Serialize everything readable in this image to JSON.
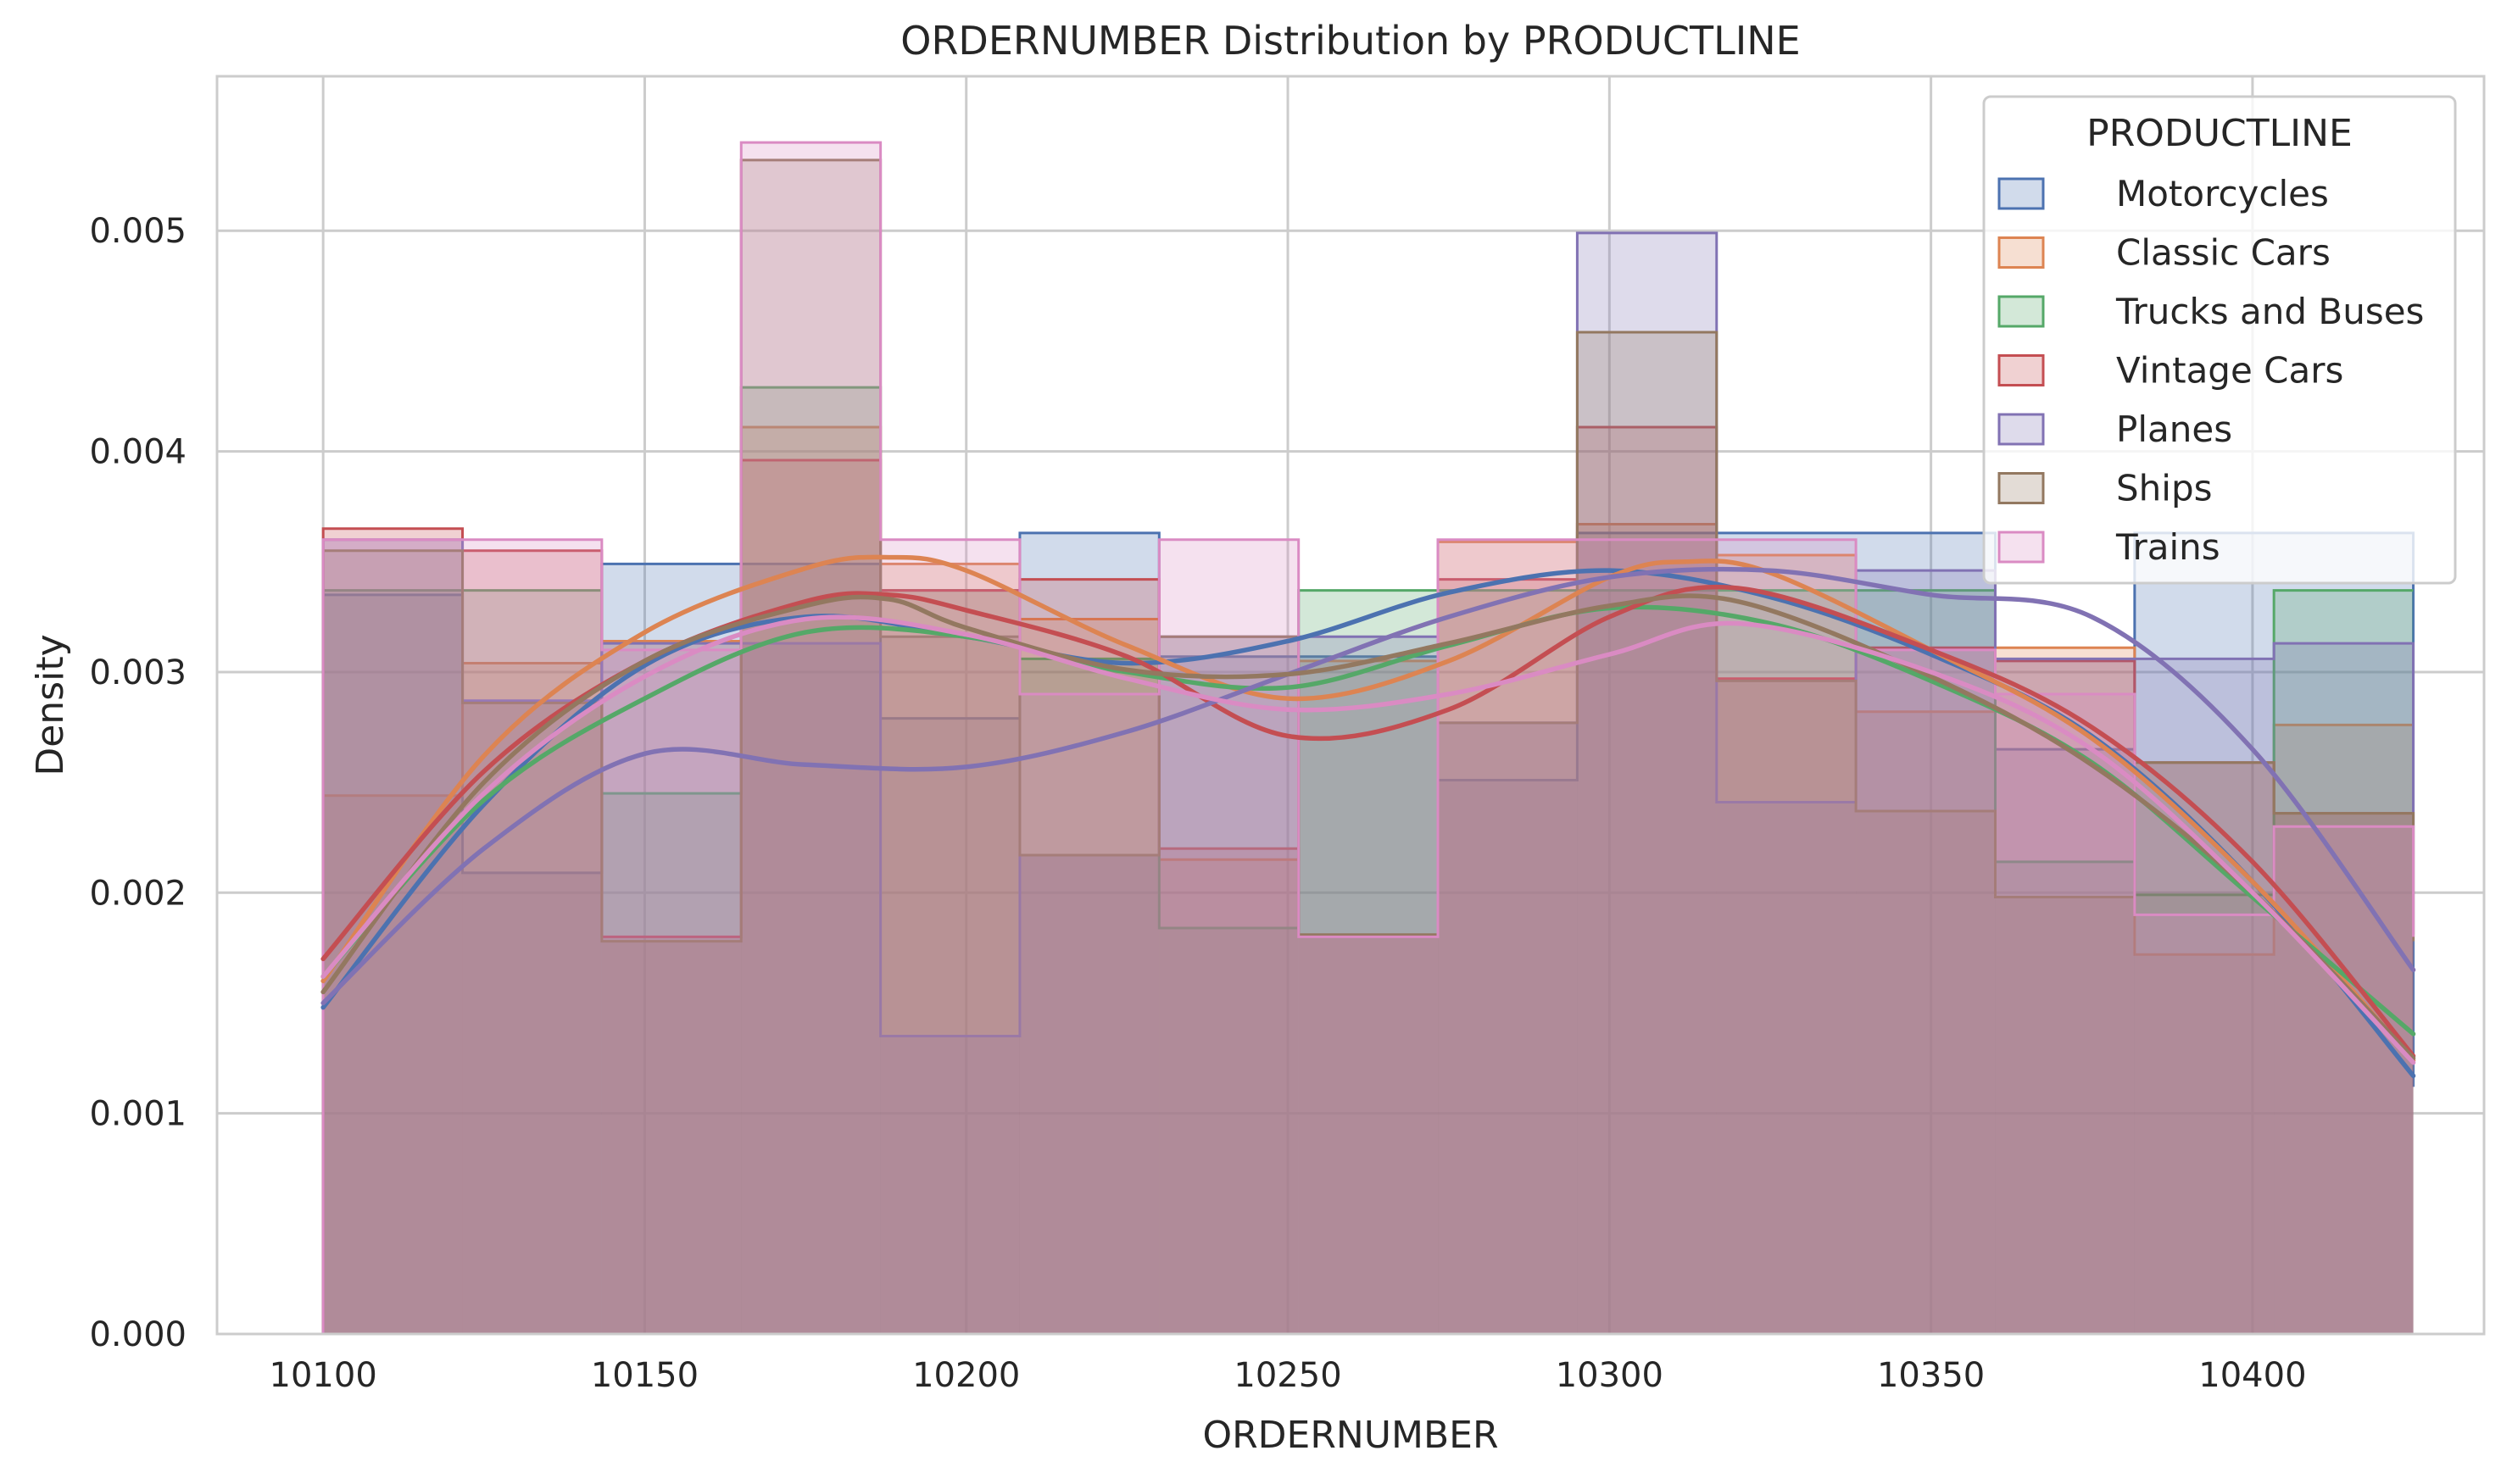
{
  "chart_data": {
    "type": "histogram",
    "title": "ORDERNUMBER Distribution by PRODUCTLINE",
    "xlabel": "ORDERNUMBER",
    "ylabel": "Density",
    "xlim": [
      10083.5,
      10436
    ],
    "ylim": [
      0,
      0.0057
    ],
    "x_ticks": [
      10100,
      10150,
      10200,
      10250,
      10300,
      10350,
      10400
    ],
    "x_tick_labels": [
      "10100",
      "10150",
      "10200",
      "10250",
      "10300",
      "10350",
      "10400"
    ],
    "y_ticks": [
      0,
      0.001,
      0.002,
      0.003,
      0.004,
      0.005
    ],
    "y_tick_labels": [
      "0.000",
      "0.001",
      "0.002",
      "0.003",
      "0.004",
      "0.005"
    ],
    "grid": true,
    "bins": [
      10100,
      10121.67,
      10143.33,
      10165,
      10186.67,
      10208.33,
      10230,
      10251.67,
      10273.33,
      10295,
      10316.67,
      10338.33,
      10360,
      10381.67,
      10403.33,
      10425
    ],
    "legend": {
      "title": "PRODUCTLINE",
      "position": "top-right"
    },
    "series": [
      {
        "name": "Motorcycles",
        "color": "#4c72b0",
        "values": [
          0.00335,
          0.00209,
          0.00349,
          0.00349,
          0.00279,
          0.00363,
          0.00307,
          0.00307,
          0.00251,
          0.00363,
          0.00363,
          0.00363,
          0.00265,
          0.00363,
          0.00363,
          0.00112
        ],
        "kde": [
          [
            10100,
            0.00148
          ],
          [
            10125,
            0.0024
          ],
          [
            10150,
            0.00303
          ],
          [
            10175,
            0.00325
          ],
          [
            10200,
            0.00316
          ],
          [
            10225,
            0.00304
          ],
          [
            10250,
            0.00314
          ],
          [
            10275,
            0.00336
          ],
          [
            10300,
            0.00346
          ],
          [
            10325,
            0.00334
          ],
          [
            10350,
            0.00308
          ],
          [
            10375,
            0.00271
          ],
          [
            10400,
            0.00205
          ],
          [
            10425,
            0.00117
          ]
        ]
      },
      {
        "name": "Classic Cars",
        "color": "#dd8452",
        "values": [
          0.00244,
          0.00304,
          0.00314,
          0.00411,
          0.00349,
          0.00324,
          0.00215,
          0.00305,
          0.00359,
          0.00367,
          0.00353,
          0.00282,
          0.00311,
          0.00172,
          0.00276,
          0.00276
        ],
        "kde": [
          [
            10100,
            0.0016
          ],
          [
            10125,
            0.00262
          ],
          [
            10150,
            0.00318
          ],
          [
            10175,
            0.00347
          ],
          [
            10188,
            0.00352
          ],
          [
            10200,
            0.00346
          ],
          [
            10225,
            0.00312
          ],
          [
            10250,
            0.00288
          ],
          [
            10275,
            0.00305
          ],
          [
            10300,
            0.00343
          ],
          [
            10312,
            0.0035
          ],
          [
            10325,
            0.00345
          ],
          [
            10350,
            0.0031
          ],
          [
            10375,
            0.0027
          ],
          [
            10400,
            0.00205
          ],
          [
            10425,
            0.00124
          ]
        ]
      },
      {
        "name": "Trucks and Buses",
        "color": "#55a868",
        "values": [
          0.00337,
          0.00337,
          0.00245,
          0.00429,
          0.00337,
          0.00306,
          0.00184,
          0.00337,
          0.00337,
          0.00337,
          0.00337,
          0.00337,
          0.00214,
          0.00199,
          0.00337,
          0.00337
        ],
        "kde": [
          [
            10100,
            0.00162
          ],
          [
            10125,
            0.00242
          ],
          [
            10150,
            0.00288
          ],
          [
            10175,
            0.00318
          ],
          [
            10200,
            0.00316
          ],
          [
            10225,
            0.003
          ],
          [
            10250,
            0.00293
          ],
          [
            10275,
            0.00312
          ],
          [
            10300,
            0.00329
          ],
          [
            10325,
            0.00322
          ],
          [
            10350,
            0.00296
          ],
          [
            10375,
            0.00259
          ],
          [
            10400,
            0.00198
          ],
          [
            10425,
            0.00136
          ]
        ]
      },
      {
        "name": "Vintage Cars",
        "color": "#c44e52",
        "values": [
          0.00365,
          0.00355,
          0.0018,
          0.00396,
          0.00337,
          0.00342,
          0.0022,
          0.0018,
          0.00342,
          0.00411,
          0.00297,
          0.00311,
          0.00305,
          0.00259,
          0.00236,
          0.0018
        ],
        "kde": [
          [
            10100,
            0.0017
          ],
          [
            10125,
            0.00255
          ],
          [
            10150,
            0.00305
          ],
          [
            10175,
            0.00332
          ],
          [
            10188,
            0.00335
          ],
          [
            10200,
            0.00328
          ],
          [
            10225,
            0.00307
          ],
          [
            10250,
            0.00271
          ],
          [
            10275,
            0.00283
          ],
          [
            10300,
            0.00325
          ],
          [
            10320,
            0.00338
          ],
          [
            10350,
            0.0031
          ],
          [
            10375,
            0.00275
          ],
          [
            10400,
            0.00214
          ],
          [
            10425,
            0.00126
          ]
        ]
      },
      {
        "name": "Planes",
        "color": "#8172b3",
        "values": [
          0.0036,
          0.00287,
          0.00313,
          0.00313,
          0.00135,
          0.00217,
          0.00316,
          0.00316,
          0.00277,
          0.00499,
          0.00241,
          0.00346,
          0.00306,
          0.00306,
          0.00313,
          0.00181
        ],
        "kde": [
          [
            10100,
            0.0015
          ],
          [
            10125,
            0.0022
          ],
          [
            10150,
            0.00263
          ],
          [
            10175,
            0.00258
          ],
          [
            10200,
            0.00257
          ],
          [
            10225,
            0.00273
          ],
          [
            10250,
            0.00299
          ],
          [
            10275,
            0.00325
          ],
          [
            10300,
            0.00343
          ],
          [
            10325,
            0.00346
          ],
          [
            10350,
            0.00335
          ],
          [
            10375,
            0.00325
          ],
          [
            10400,
            0.00265
          ],
          [
            10425,
            0.00165
          ]
        ]
      },
      {
        "name": "Ships",
        "color": "#937860",
        "values": [
          0.00355,
          0.00286,
          0.00178,
          0.00532,
          0.00316,
          0.00217,
          0.00316,
          0.00181,
          0.00277,
          0.00454,
          0.00296,
          0.00237,
          0.00198,
          0.00259,
          0.00236,
          0.00178
        ],
        "kde": [
          [
            10100,
            0.00155
          ],
          [
            10125,
            0.0025
          ],
          [
            10150,
            0.00305
          ],
          [
            10175,
            0.0033
          ],
          [
            10188,
            0.00333
          ],
          [
            10200,
            0.0032
          ],
          [
            10225,
            0.00301
          ],
          [
            10250,
            0.00299
          ],
          [
            10275,
            0.00313
          ],
          [
            10300,
            0.0033
          ],
          [
            10320,
            0.00332
          ],
          [
            10350,
            0.00298
          ],
          [
            10375,
            0.00258
          ],
          [
            10400,
            0.002
          ],
          [
            10425,
            0.00125
          ]
        ]
      },
      {
        "name": "Trains",
        "color": "#da8bc3",
        "values": [
          0.0036,
          0.0036,
          0.0031,
          0.0054,
          0.0036,
          0.0029,
          0.0036,
          0.0018,
          0.0036,
          0.0036,
          0.0036,
          0.0031,
          0.0029,
          0.0019,
          0.0023,
          0.0018
        ],
        "kde": [
          [
            10100,
            0.00162
          ],
          [
            10125,
            0.00245
          ],
          [
            10150,
            0.00298
          ],
          [
            10175,
            0.00324
          ],
          [
            10200,
            0.00317
          ],
          [
            10225,
            0.00297
          ],
          [
            10250,
            0.00283
          ],
          [
            10275,
            0.0029
          ],
          [
            10300,
            0.00308
          ],
          [
            10320,
            0.00322
          ],
          [
            10350,
            0.003
          ],
          [
            10375,
            0.00265
          ],
          [
            10400,
            0.002
          ],
          [
            10425,
            0.00123
          ]
        ]
      }
    ]
  }
}
